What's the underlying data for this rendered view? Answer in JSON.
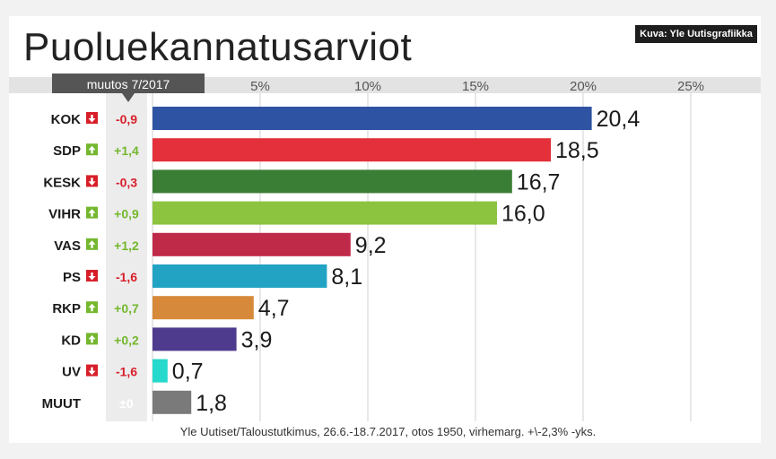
{
  "title": "Puoluekannatusarviot",
  "credit": "Kuva: Yle Uutisgrafiikka",
  "source": "Yle Uutiset/Taloustutkimus, 26.6.-18.7.2017, otos 1950, virhemarg. +\\-2,3% -yks.",
  "chart_data": {
    "type": "bar",
    "orientation": "horizontal",
    "title": "Puoluekannatusarviot",
    "change_header": "muutos 7/2017",
    "xlim": [
      0,
      25
    ],
    "xticks": [
      5,
      10,
      15,
      20,
      25
    ],
    "xtick_labels": [
      "5%",
      "10%",
      "15%",
      "20%",
      "25%"
    ],
    "grid": true,
    "categories": [
      "KOK",
      "SDP",
      "KESK",
      "VIHR",
      "VAS",
      "PS",
      "RKP",
      "KD",
      "UV",
      "MUUT"
    ],
    "values": [
      20.4,
      18.5,
      16.7,
      16.0,
      9.2,
      8.1,
      4.7,
      3.9,
      0.7,
      1.8
    ],
    "value_labels": [
      "20,4",
      "18,5",
      "16,7",
      "16,0",
      "9,2",
      "8,1",
      "4,7",
      "3,9",
      "0,7",
      "1,8"
    ],
    "changes": [
      "-0,9",
      "+1,4",
      "-0,3",
      "+0,9",
      "+1,2",
      "-1,6",
      "+0,7",
      "+0,2",
      "-1,6",
      "±0"
    ],
    "change_direction": [
      "down",
      "up",
      "down",
      "up",
      "up",
      "down",
      "up",
      "up",
      "down",
      "none"
    ],
    "colors": [
      "#2f53a3",
      "#e3303a",
      "#3a7d35",
      "#8cc43f",
      "#bf2a48",
      "#23a3c4",
      "#d6893a",
      "#4f3b8e",
      "#25d9cc",
      "#7a7a7a"
    ],
    "change_colors": {
      "up": "#74b72e",
      "down": "#d71f2a",
      "none": "#ffffff"
    }
  }
}
